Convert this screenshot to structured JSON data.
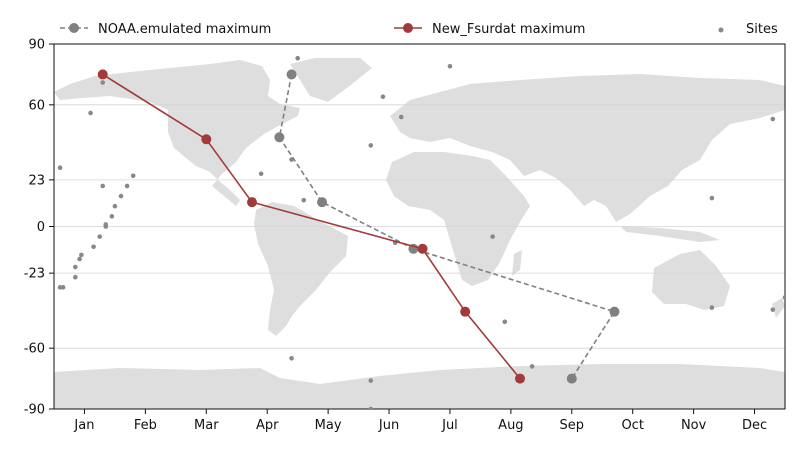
{
  "chart_data": {
    "type": "line",
    "title": "",
    "xlabel": "",
    "ylabel": "",
    "x_ticks": [
      "Jan",
      "Feb",
      "Mar",
      "Apr",
      "May",
      "Jun",
      "Jul",
      "Aug",
      "Sep",
      "Oct",
      "Nov",
      "Dec"
    ],
    "y_ticks": [
      90,
      60,
      23,
      0,
      -23,
      -60,
      -90
    ],
    "xlim": [
      0.5,
      12.5
    ],
    "ylim": [
      -90,
      90
    ],
    "background": "world map",
    "grid": "horizontal",
    "legend": {
      "placement": "top",
      "entries": [
        "NOAA.emulated maximum",
        "New_Fsurdat maximum",
        "Sites"
      ]
    },
    "series": [
      {
        "name": "NOAA.emulated maximum",
        "color": "#808080",
        "style": "dashed",
        "points": [
          {
            "month": 4.4,
            "lat": 75
          },
          {
            "month": 4.2,
            "lat": 44
          },
          {
            "month": 4.9,
            "lat": 12
          },
          {
            "month": 6.4,
            "lat": -11
          },
          {
            "month": 9.7,
            "lat": -42
          },
          {
            "month": 9.0,
            "lat": -75
          }
        ]
      },
      {
        "name": "New_Fsurdat maximum",
        "color": "#a33a3a",
        "style": "solid",
        "points": [
          {
            "month": 1.3,
            "lat": 75
          },
          {
            "month": 3.0,
            "lat": 43
          },
          {
            "month": 3.75,
            "lat": 12
          },
          {
            "month": 6.55,
            "lat": -11
          },
          {
            "month": 7.25,
            "lat": -42
          },
          {
            "month": 8.15,
            "lat": -75
          }
        ]
      }
    ],
    "sites": {
      "name": "Sites",
      "color": "#888888",
      "points": [
        [
          4.5,
          83
        ],
        [
          7.0,
          79
        ],
        [
          1.3,
          71
        ],
        [
          1.1,
          56
        ],
        [
          5.9,
          64
        ],
        [
          6.2,
          54
        ],
        [
          5.7,
          40
        ],
        [
          0.6,
          29
        ],
        [
          4.4,
          33
        ],
        [
          3.9,
          26
        ],
        [
          1.8,
          25
        ],
        [
          1.3,
          20
        ],
        [
          1.7,
          20
        ],
        [
          1.6,
          15
        ],
        [
          1.5,
          10
        ],
        [
          1.45,
          5
        ],
        [
          1.35,
          1
        ],
        [
          1.35,
          0
        ],
        [
          1.25,
          -5
        ],
        [
          1.15,
          -10
        ],
        [
          0.95,
          -14
        ],
        [
          0.92,
          -16
        ],
        [
          0.85,
          -20
        ],
        [
          0.85,
          -25
        ],
        [
          0.65,
          -30
        ],
        [
          0.6,
          -30
        ],
        [
          4.6,
          13
        ],
        [
          11.3,
          14
        ],
        [
          6.1,
          -8
        ],
        [
          7.7,
          -5
        ],
        [
          4.4,
          -65
        ],
        [
          5.7,
          -76
        ],
        [
          5.7,
          -90
        ],
        [
          7.9,
          -47
        ],
        [
          8.35,
          -69
        ],
        [
          11.3,
          -40
        ],
        [
          12.3,
          -41
        ],
        [
          12.5,
          -35
        ],
        [
          12.3,
          53
        ]
      ]
    }
  }
}
